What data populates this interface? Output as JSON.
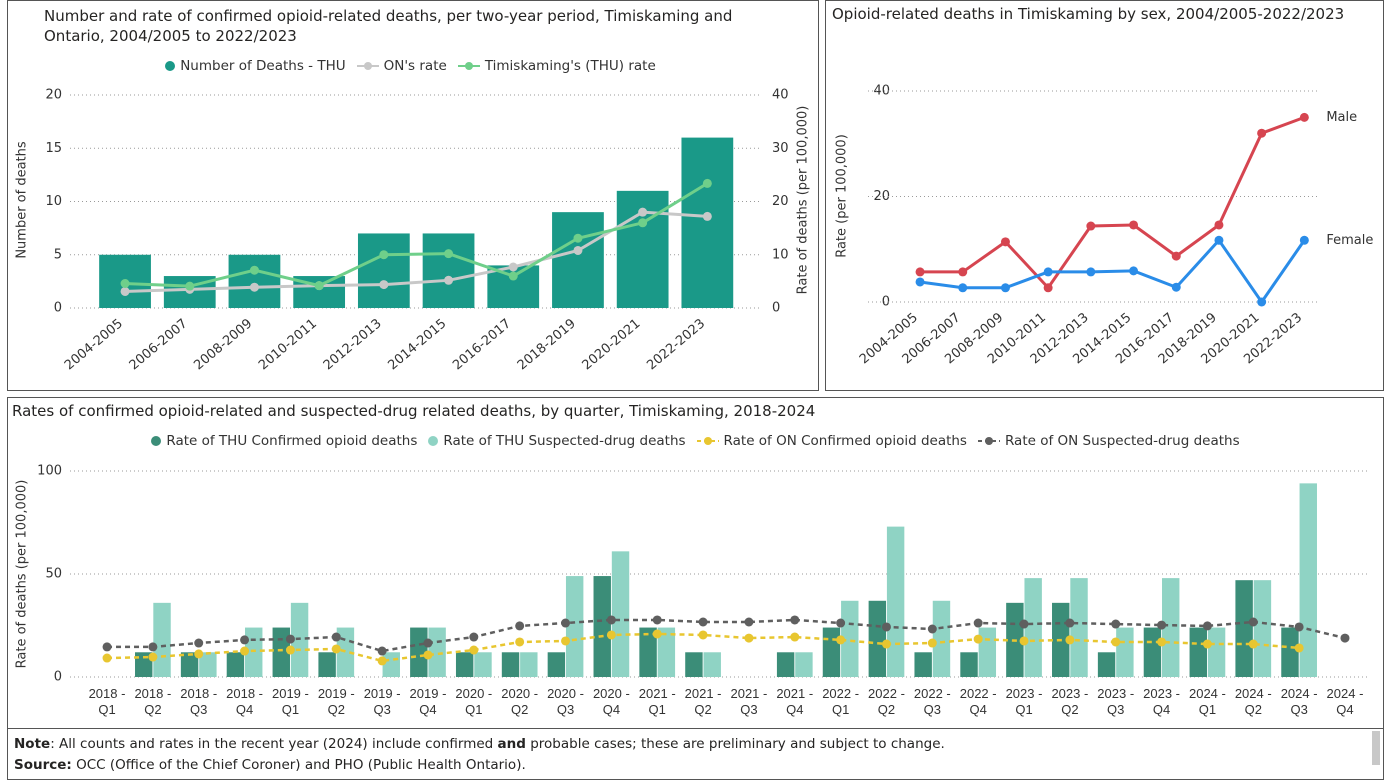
{
  "chart_data": [
    {
      "type": "combo",
      "title": "Number and rate of confirmed opioid-related deaths, per two-year period, Timiskaming and Ontario, 2004/2005 to 2022/2023",
      "ylabel": "Number of deaths",
      "y2label": "Rate of deaths (per 100,000)",
      "categories": [
        "2004-2005",
        "2006-2007",
        "2008-2009",
        "2010-2011",
        "2012-2013",
        "2014-2015",
        "2016-2017",
        "2018-2019",
        "2020-2021",
        "2022-2023"
      ],
      "ylim": [
        0,
        20
      ],
      "yticks": [
        0,
        5,
        10,
        15,
        20
      ],
      "y2lim": [
        0,
        40
      ],
      "y2ticks": [
        0,
        10,
        20,
        30,
        40
      ],
      "grid": true,
      "legend": "top",
      "series": [
        {
          "name": "Number of Deaths - THU",
          "type": "bar",
          "color": "#1a9988",
          "values": [
            5,
            3,
            5,
            3,
            7,
            7,
            4,
            9,
            11,
            16
          ]
        },
        {
          "name": "ON's rate",
          "type": "line",
          "axis": "y2",
          "color": "#c8c8c8",
          "values": [
            3.1,
            3.5,
            3.9,
            4.2,
            4.4,
            5.2,
            7.7,
            10.8,
            18,
            17.2
          ]
        },
        {
          "name": "Timiskaming's (THU) rate",
          "type": "line",
          "axis": "y2",
          "color": "#6fcf8a",
          "values": [
            4.6,
            4.1,
            7.1,
            4.2,
            10,
            10.2,
            6,
            13.1,
            16,
            23.4
          ]
        }
      ]
    },
    {
      "type": "line",
      "title": "Opioid-related deaths in Timiskaming by sex, 2004/2005-2022/2023",
      "ylabel": "Rate (per 100,000)",
      "categories": [
        "2004-2005",
        "2006-2007",
        "2008-2009",
        "2010-2011",
        "2012-2013",
        "2014-2015",
        "2016-2017",
        "2018-2019",
        "2020-2021",
        "2022-2023"
      ],
      "ylim": [
        0,
        40
      ],
      "yticks": [
        0,
        20,
        40
      ],
      "grid": true,
      "labels": "end",
      "series": [
        {
          "name": "Male",
          "type": "line",
          "color": "#d64550",
          "values": [
            5.7,
            5.7,
            11.4,
            2.7,
            14.4,
            14.6,
            8.7,
            14.6,
            32,
            35
          ]
        },
        {
          "name": "Female",
          "type": "line",
          "color": "#2a8ce8",
          "values": [
            3.8,
            2.7,
            2.7,
            5.7,
            5.7,
            5.9,
            2.8,
            11.7,
            0,
            11.7
          ]
        }
      ]
    },
    {
      "type": "combo",
      "title": "Rates of confirmed opioid-related and suspected-drug related deaths, by quarter, Timiskaming, 2018-2024",
      "ylabel": "Rate of deaths (per 100,000)",
      "categories": [
        "2018 - Q1",
        "2018 - Q2",
        "2018 - Q3",
        "2018 - Q4",
        "2019 - Q1",
        "2019 - Q2",
        "2019 - Q3",
        "2019 - Q4",
        "2020 - Q1",
        "2020 - Q2",
        "2020 - Q3",
        "2020 - Q4",
        "2021 - Q1",
        "2021 - Q2",
        "2021 - Q3",
        "2021 - Q4",
        "2022 - Q1",
        "2022 - Q2",
        "2022 - Q3",
        "2022 - Q4",
        "2023 - Q1",
        "2023 - Q2",
        "2023 - Q3",
        "2023 - Q4",
        "2024 - Q1",
        "2024 - Q2",
        "2024 - Q3",
        "2024 - Q4"
      ],
      "ylim": [
        0,
        100
      ],
      "yticks": [
        0,
        50,
        100
      ],
      "grid": true,
      "legend": "top",
      "series": [
        {
          "name": "Rate of THU Confirmed opioid deaths",
          "type": "bar",
          "color": "#3b8d78",
          "values": [
            null,
            12,
            12,
            12,
            24,
            12,
            null,
            24,
            12,
            12,
            12,
            49,
            24,
            12,
            null,
            12,
            24,
            37,
            12,
            12,
            36,
            36,
            12,
            24,
            24,
            47,
            24,
            null
          ]
        },
        {
          "name": "Rate of THU Suspected-drug deaths",
          "type": "bar",
          "color": "#8fd3c4",
          "values": [
            null,
            36,
            12,
            24,
            36,
            24,
            12,
            24,
            12,
            12,
            49,
            61,
            24,
            12,
            null,
            12,
            37,
            73,
            37,
            24,
            48,
            48,
            24,
            48,
            24,
            47,
            94,
            null
          ]
        },
        {
          "name": "Rate of ON Confirmed opioid deaths",
          "type": "line",
          "dash": true,
          "color": "#e8c630",
          "values": [
            9.2,
            9.7,
            11.2,
            12.6,
            13.1,
            13.6,
            7.8,
            10.7,
            13.1,
            17,
            17.5,
            20.4,
            20.9,
            20.4,
            18.9,
            19.4,
            18,
            16,
            16.5,
            18.4,
            17.5,
            18,
            17,
            17,
            16,
            16,
            14.1,
            null
          ]
        },
        {
          "name": "Rate of ON Suspected-drug deaths",
          "type": "line",
          "dash": true,
          "color": "#5f5f5f",
          "values": [
            14.6,
            14.6,
            16.5,
            18,
            18.4,
            19.4,
            12.6,
            16.5,
            19.4,
            24.8,
            26.2,
            27.7,
            27.7,
            26.7,
            26.7,
            27.7,
            26.2,
            24.3,
            23.3,
            26.2,
            25.7,
            26.2,
            25.7,
            25.2,
            24.8,
            26.7,
            24.3,
            18.9
          ]
        }
      ]
    }
  ],
  "footnote": {
    "note": [
      "Note",
      ": All counts and rates in the recent year (2024) include confirmed ",
      "and",
      " probable cases; these are preliminary and subject to change."
    ],
    "source": [
      "Source:",
      " OCC (Office of the Chief Coroner) and PHO (Public Health Ontario)."
    ]
  }
}
